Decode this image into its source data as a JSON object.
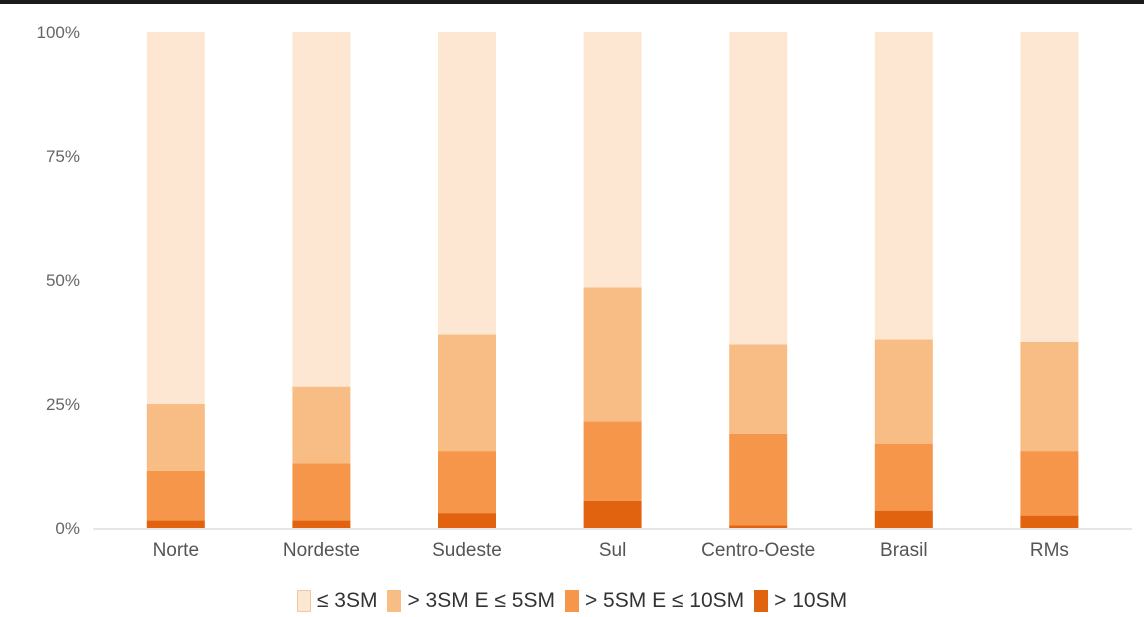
{
  "chart_data": {
    "type": "bar",
    "stacked": true,
    "normalized": true,
    "title": "",
    "xlabel": "",
    "ylabel": "",
    "ylim": [
      0,
      100
    ],
    "yticks": [
      "0%",
      "25%",
      "50%",
      "75%",
      "100%"
    ],
    "categories": [
      "Norte",
      "Nordeste",
      "Sudeste",
      "Sul",
      "Centro-Oeste",
      "Brasil",
      "RMs"
    ],
    "series": [
      {
        "name": "> 10SM",
        "color": "#e2630f",
        "values": [
          1.5,
          1.5,
          3.0,
          5.5,
          0.5,
          3.5,
          2.5
        ]
      },
      {
        "name": "> 5SM E ≤ 10SM",
        "color": "#f6964a",
        "values": [
          10.0,
          11.5,
          12.5,
          16.0,
          18.5,
          13.5,
          13.0
        ]
      },
      {
        "name": "> 3SM E ≤ 5SM",
        "color": "#f8bd84",
        "values": [
          13.5,
          15.5,
          23.5,
          27.0,
          18.0,
          21.0,
          22.0
        ]
      },
      {
        "name": "≤ 3SM",
        "color": "#fde7d3",
        "values": [
          75.0,
          71.5,
          61.0,
          51.5,
          63.0,
          62.0,
          62.5
        ]
      }
    ],
    "legend": {
      "position": "bottom",
      "order": [
        "≤ 3SM",
        "> 3SM E ≤ 5SM",
        "> 5SM E ≤ 10SM",
        "> 10SM"
      ]
    },
    "grid": false
  }
}
